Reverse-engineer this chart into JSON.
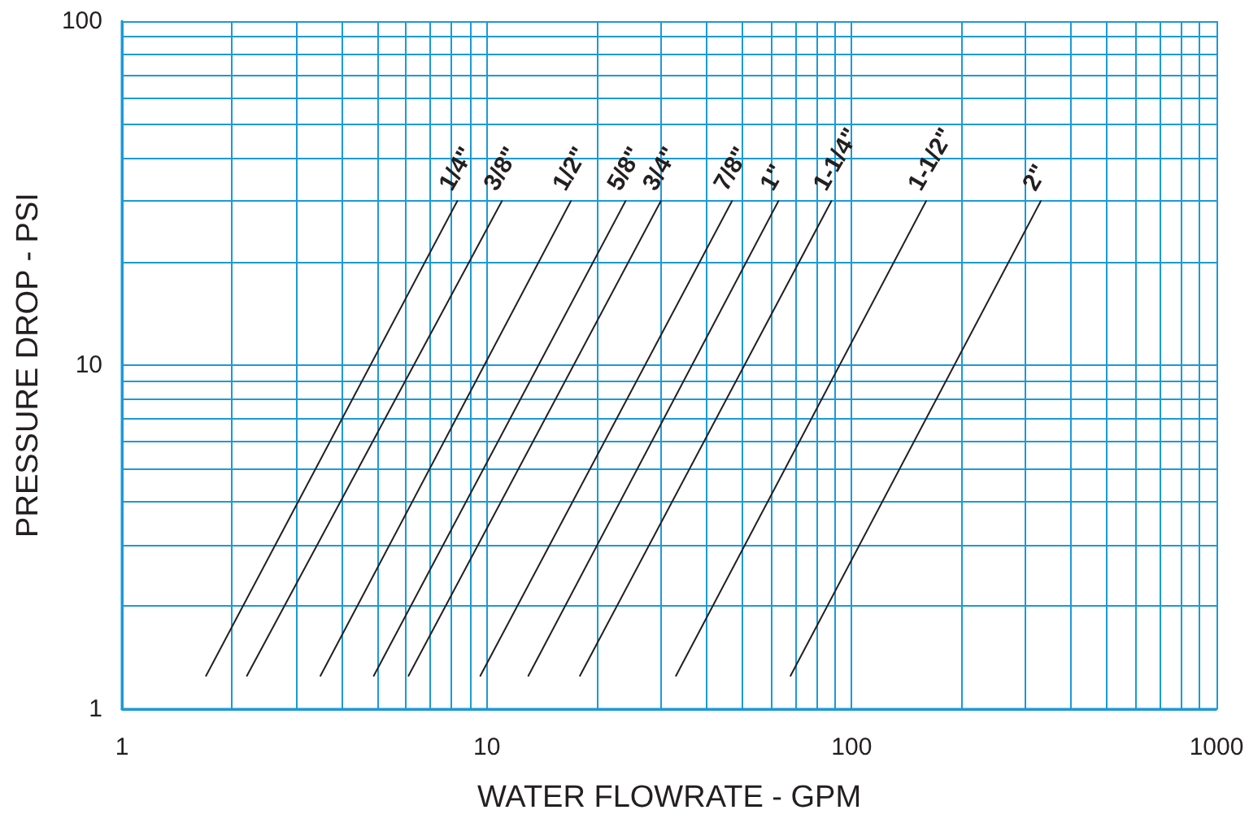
{
  "chart_data": {
    "type": "line",
    "xlabel": "WATER FLOWRATE - GPM",
    "ylabel": "PRESSURE DROP - PSI",
    "log": "xy",
    "grid": true,
    "marker": "none",
    "xlim": [
      1,
      1000
    ],
    "ylim": [
      1,
      100
    ],
    "xticks": [
      1,
      {
        "value": 2,
        "label": null
      },
      {
        "value": 3,
        "label": null
      },
      {
        "value": 4,
        "label": null
      },
      {
        "value": 5,
        "label": null
      },
      {
        "value": 6,
        "label": null
      },
      {
        "value": 7,
        "label": null
      },
      {
        "value": 8,
        "label": null
      },
      {
        "value": 9,
        "label": null
      },
      10,
      {
        "value": 20,
        "label": null
      },
      {
        "value": 30,
        "label": null
      },
      {
        "value": 40,
        "label": null
      },
      {
        "value": 50,
        "label": null
      },
      {
        "value": 60,
        "label": null
      },
      {
        "value": 70,
        "label": null
      },
      {
        "value": 80,
        "label": null
      },
      {
        "value": 90,
        "label": null
      },
      100,
      {
        "value": 200,
        "label": null
      },
      {
        "value": 300,
        "label": null
      },
      {
        "value": 400,
        "label": null
      },
      {
        "value": 500,
        "label": null
      },
      {
        "value": 600,
        "label": null
      },
      {
        "value": 700,
        "label": null
      },
      {
        "value": 800,
        "label": null
      },
      {
        "value": 900,
        "label": null
      },
      1000
    ],
    "yticks": [
      1,
      {
        "value": 2,
        "label": null
      },
      {
        "value": 3,
        "label": null
      },
      {
        "value": 4,
        "label": null
      },
      {
        "value": 5,
        "label": null
      },
      {
        "value": 6,
        "label": null
      },
      {
        "value": 7,
        "label": null
      },
      {
        "value": 8,
        "label": null
      },
      {
        "value": 9,
        "label": null
      },
      10,
      {
        "value": 20,
        "label": null
      },
      {
        "value": 30,
        "label": null
      },
      {
        "value": 40,
        "label": null
      },
      {
        "value": 50,
        "label": null
      },
      {
        "value": 60,
        "label": null
      },
      {
        "value": 70,
        "label": null
      },
      {
        "value": 80,
        "label": null
      },
      {
        "value": 90,
        "label": null
      },
      100
    ],
    "series": [
      {
        "name": "1/4\"",
        "color": "#231f20",
        "x": [
          1.7,
          8.3
        ],
        "values": [
          1.25,
          30
        ]
      },
      {
        "name": "3/8\"",
        "color": "#231f20",
        "x": [
          2.2,
          11
        ],
        "values": [
          1.25,
          30
        ]
      },
      {
        "name": "1/2\"",
        "color": "#231f20",
        "x": [
          3.5,
          17
        ],
        "values": [
          1.25,
          30
        ]
      },
      {
        "name": "5/8\"",
        "color": "#231f20",
        "x": [
          4.9,
          24
        ],
        "values": [
          1.25,
          30
        ]
      },
      {
        "name": "3/4\"",
        "color": "#231f20",
        "x": [
          6.1,
          30
        ],
        "values": [
          1.25,
          30
        ]
      },
      {
        "name": "7/8\"",
        "color": "#231f20",
        "x": [
          9.6,
          47
        ],
        "values": [
          1.25,
          30
        ]
      },
      {
        "name": "1\"",
        "color": "#231f20",
        "x": [
          13,
          63
        ],
        "values": [
          1.25,
          30
        ]
      },
      {
        "name": "1-1/4\"",
        "color": "#231f20",
        "x": [
          18,
          88
        ],
        "values": [
          1.25,
          30
        ]
      },
      {
        "name": "1-1/2\"",
        "color": "#231f20",
        "x": [
          33,
          160
        ],
        "values": [
          1.25,
          30
        ]
      },
      {
        "name": "2\"",
        "color": "#231f20",
        "x": [
          68,
          330
        ],
        "values": [
          1.25,
          30
        ]
      }
    ]
  }
}
